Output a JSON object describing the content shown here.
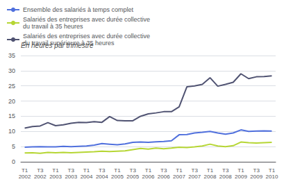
{
  "chart_data": {
    "type": "line",
    "ylabel": "En heures par trimestre",
    "categories": [
      "T1\n2002",
      null,
      "T3\n2002",
      null,
      "T1\n2003",
      null,
      "T3\n2003",
      null,
      "T1\n2004",
      null,
      "T3\n2004",
      null,
      "T1\n2005",
      null,
      "T3\n2005",
      null,
      "T1\n2006",
      null,
      "T3\n2006",
      null,
      "T1\n2007",
      null,
      "T3\n2007",
      null,
      "T1\n2008",
      null,
      "T3\n2008",
      null,
      "T1\n2009",
      null,
      "T3\n2009",
      null,
      "T1\n2010"
    ],
    "series": [
      {
        "name": "Ensemble des salariés à temps complet",
        "values": [
          4.8,
          4.9,
          5.0,
          4.9,
          4.9,
          5.1,
          5.0,
          5.1,
          5.2,
          5.5,
          6.0,
          5.8,
          5.6,
          5.9,
          6.4,
          6.5,
          6.4,
          6.6,
          6.7,
          6.9,
          8.9,
          9.0,
          9.5,
          9.7,
          10.0,
          9.5,
          9.1,
          9.5,
          10.5,
          10.0,
          10.1,
          10.2,
          10.1
        ]
      },
      {
        "name": "Salariés des entreprises avec durée collective\ndu travail à 35 heures",
        "values": [
          2.9,
          3.0,
          2.8,
          3.1,
          3.0,
          3.1,
          3.0,
          3.1,
          3.2,
          3.3,
          3.5,
          3.4,
          3.5,
          3.6,
          4.0,
          4.4,
          4.2,
          4.5,
          4.3,
          4.5,
          4.8,
          4.7,
          4.9,
          5.2,
          5.8,
          5.2,
          5.0,
          5.3,
          6.5,
          6.3,
          6.2,
          6.3,
          6.4
        ]
      },
      {
        "name": "Salariés des entreprises avec durée collective\ndu travail supérieure à 35 heures",
        "values": [
          11.1,
          11.6,
          11.8,
          12.9,
          11.9,
          12.2,
          12.7,
          13.0,
          12.9,
          13.2,
          13.0,
          14.9,
          13.6,
          13.5,
          13.5,
          15.0,
          15.8,
          16.1,
          16.5,
          16.5,
          18.1,
          24.7,
          25.0,
          25.5,
          27.7,
          24.9,
          25.5,
          26.2,
          29.0,
          27.4,
          28.0,
          28.1,
          28.3
        ]
      }
    ],
    "ylim": [
      0,
      35
    ],
    "yticks": [
      0,
      5,
      10,
      15,
      20,
      25,
      30,
      35
    ],
    "grid": true,
    "legend": "upper left"
  }
}
